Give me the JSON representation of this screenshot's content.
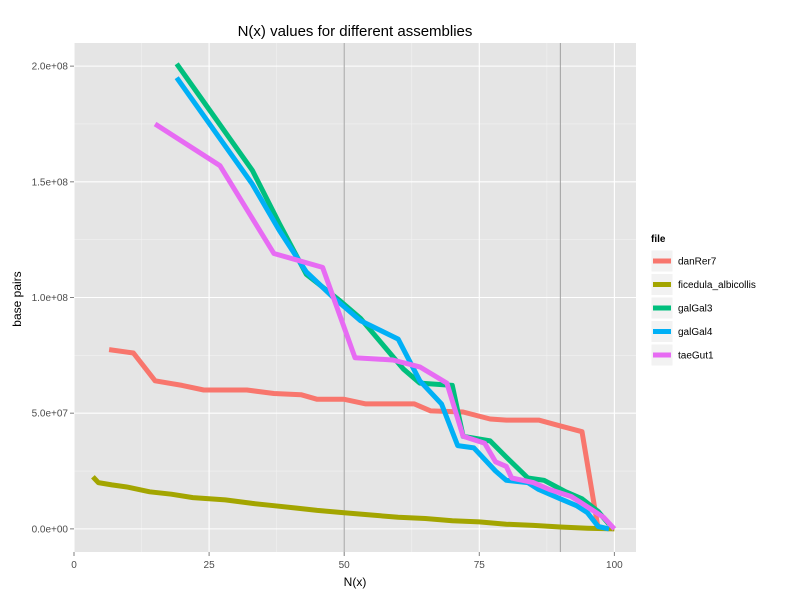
{
  "chart_data": {
    "type": "line",
    "title": "N(x) values for different assemblies",
    "xlabel": "N(x)",
    "ylabel": "base pairs",
    "xlim": [
      0,
      104
    ],
    "ylim": [
      -10000000,
      210000000
    ],
    "x_ticks": [
      0,
      25,
      50,
      75,
      100
    ],
    "x_tick_labels": [
      "0",
      "25",
      "50",
      "75",
      "100"
    ],
    "y_ticks": [
      0,
      50000000,
      100000000,
      150000000,
      200000000
    ],
    "y_tick_labels": [
      "0.0e+00",
      "5.0e+07",
      "1.0e+08",
      "1.5e+08",
      "2.0e+08"
    ],
    "vlines": [
      50,
      90
    ],
    "grid": true,
    "legend_title": "file",
    "legend_position": "right",
    "colors": {
      "panel_background": "#e5e5e5",
      "grid_major": "#ffffff",
      "grid_minor": "#f2f2f2",
      "vline": "#a0a0a0"
    },
    "series": [
      {
        "name": "danRer7",
        "color": "#F8766D",
        "points": [
          [
            6.5,
            77500000
          ],
          [
            11,
            76000000
          ],
          [
            15,
            64000000
          ],
          [
            20,
            62000000
          ],
          [
            24,
            60000000
          ],
          [
            32,
            60000000
          ],
          [
            37,
            58500000
          ],
          [
            42,
            58000000
          ],
          [
            45,
            56000000
          ],
          [
            50,
            56000000
          ],
          [
            54,
            54000000
          ],
          [
            63,
            54000000
          ],
          [
            66,
            51000000
          ],
          [
            72,
            50500000
          ],
          [
            77,
            47500000
          ],
          [
            80,
            47000000
          ],
          [
            86,
            47000000
          ],
          [
            90,
            44500000
          ],
          [
            94,
            42000000
          ],
          [
            97,
            0
          ]
        ]
      },
      {
        "name": "ficedula_albicollis",
        "color": "#A3A500",
        "points": [
          [
            3.5,
            22500000
          ],
          [
            4.5,
            20000000
          ],
          [
            7,
            19000000
          ],
          [
            10,
            18000000
          ],
          [
            14,
            16000000
          ],
          [
            18,
            15000000
          ],
          [
            22,
            13500000
          ],
          [
            28,
            12500000
          ],
          [
            33,
            11000000
          ],
          [
            37,
            10000000
          ],
          [
            41,
            9000000
          ],
          [
            45,
            8000000
          ],
          [
            50,
            7000000
          ],
          [
            55,
            6000000
          ],
          [
            60,
            5000000
          ],
          [
            65,
            4500000
          ],
          [
            70,
            3500000
          ],
          [
            75,
            3000000
          ],
          [
            80,
            2000000
          ],
          [
            85,
            1500000
          ],
          [
            90,
            800000
          ],
          [
            95,
            300000
          ],
          [
            100,
            0
          ]
        ]
      },
      {
        "name": "galGal3",
        "color": "#00BF7D",
        "points": [
          [
            19,
            201000000
          ],
          [
            26,
            178000000
          ],
          [
            33,
            155000000
          ],
          [
            38,
            132000000
          ],
          [
            43,
            110000000
          ],
          [
            49,
            99000000
          ],
          [
            53,
            91000000
          ],
          [
            57,
            80000000
          ],
          [
            61,
            69000000
          ],
          [
            64,
            63000000
          ],
          [
            70,
            62000000
          ],
          [
            72,
            40000000
          ],
          [
            77,
            38000000
          ],
          [
            80,
            31000000
          ],
          [
            84,
            22000000
          ],
          [
            87,
            21000000
          ],
          [
            91,
            16000000
          ],
          [
            94,
            13000000
          ],
          [
            97,
            7500000
          ],
          [
            99,
            2000000
          ]
        ]
      },
      {
        "name": "galGal4",
        "color": "#00B0F6",
        "points": [
          [
            19,
            195000000
          ],
          [
            26,
            172000000
          ],
          [
            33,
            149000000
          ],
          [
            38,
            129000000
          ],
          [
            43,
            111000000
          ],
          [
            48,
            100000000
          ],
          [
            53,
            90000000
          ],
          [
            60,
            82000000
          ],
          [
            64,
            64000000
          ],
          [
            68,
            54000000
          ],
          [
            71,
            36000000
          ],
          [
            74,
            35000000
          ],
          [
            78,
            25000000
          ],
          [
            80,
            21000000
          ],
          [
            84,
            20000000
          ],
          [
            86,
            17000000
          ],
          [
            90,
            13000000
          ],
          [
            93,
            10000000
          ],
          [
            95,
            7000000
          ],
          [
            97,
            1000000
          ],
          [
            99,
            0
          ]
        ]
      },
      {
        "name": "taeGut1",
        "color": "#E76BF3",
        "points": [
          [
            15,
            175000000
          ],
          [
            27,
            157000000
          ],
          [
            37,
            119000000
          ],
          [
            46,
            113000000
          ],
          [
            52,
            74000000
          ],
          [
            59,
            73000000
          ],
          [
            64,
            70000000
          ],
          [
            69,
            63000000
          ],
          [
            72,
            40000000
          ],
          [
            76,
            37000000
          ],
          [
            78,
            29000000
          ],
          [
            80,
            27000000
          ],
          [
            81,
            22000000
          ],
          [
            85,
            20000000
          ],
          [
            88,
            17000000
          ],
          [
            92,
            14000000
          ],
          [
            94,
            11000000
          ],
          [
            96,
            8000000
          ],
          [
            98,
            5000000
          ],
          [
            100,
            0
          ]
        ]
      }
    ]
  }
}
